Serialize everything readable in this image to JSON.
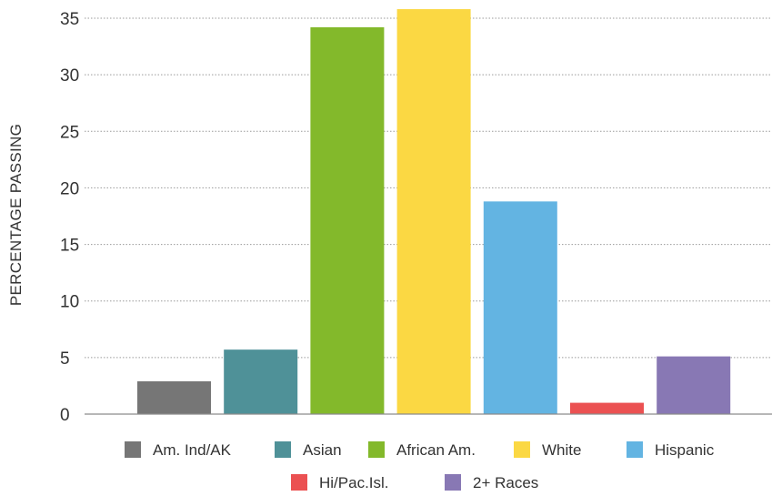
{
  "chart_data": {
    "type": "bar",
    "title": "",
    "xlabel": "",
    "ylabel": "PERCENTAGE PASSING",
    "ylim": [
      0,
      35
    ],
    "yticks": [
      0,
      5,
      10,
      15,
      20,
      25,
      30,
      35
    ],
    "grid": true,
    "legend_position": "bottom",
    "categories": [
      "Am. Ind/AK",
      "Asian",
      "African Am.",
      "White",
      "Hispanic",
      "Hi/Pac.Isl.",
      "2+ Races"
    ],
    "values": [
      2.9,
      5.7,
      34.2,
      35.8,
      18.8,
      1.0,
      5.1
    ],
    "colors": [
      "#767676",
      "#4f9198",
      "#83b92b",
      "#fbd843",
      "#63b4e2",
      "#eb5152",
      "#8878b4"
    ]
  }
}
